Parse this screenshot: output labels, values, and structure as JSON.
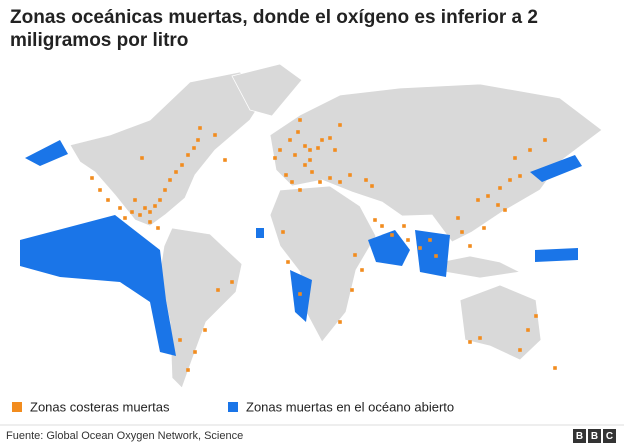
{
  "title": "Zonas oceánicas muertas, donde el oxígeno es inferior a 2 miligramos por litro",
  "legend": [
    {
      "label": "Zonas costeras muertas",
      "color": "#f28c1e"
    },
    {
      "label": "Zonas muertas en el océano abierto",
      "color": "#1a75e8"
    }
  ],
  "source": "Fuente: Global Ocean Oxygen Network, Science",
  "logo": [
    "B",
    "B",
    "C"
  ]
}
